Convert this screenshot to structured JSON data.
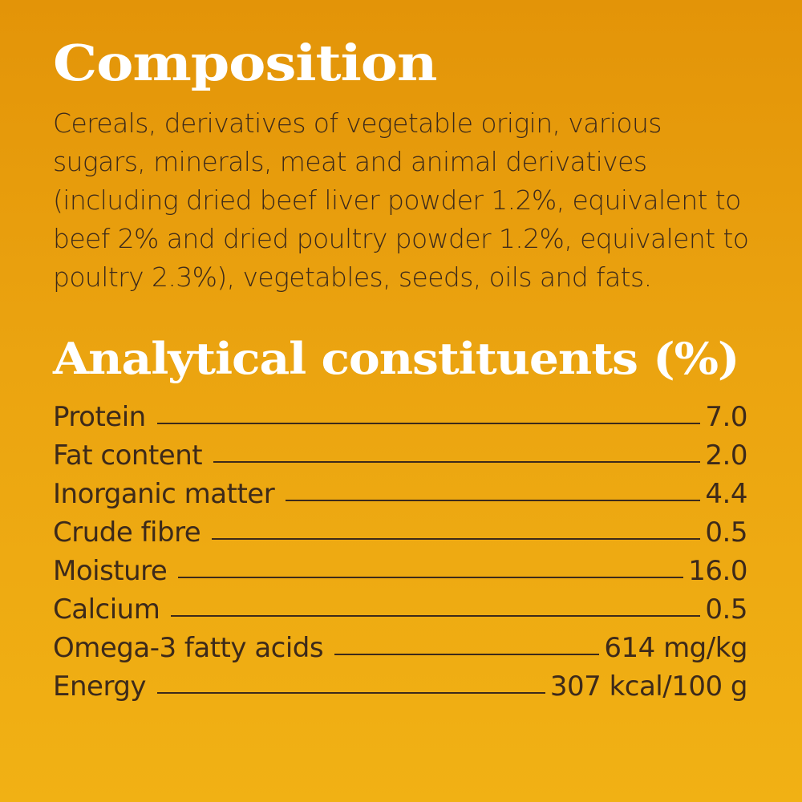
{
  "composition": {
    "title": "Composition",
    "text": "Cereals, derivatives of vegetable origin, various sugars, minerals, meat and animal derivatives (including dried beef liver powder 1.2%, equivalent to beef 2% and dried poultry powder 1.2%, equivalent to poultry 2.3%), vegetables, seeds, oils and fats."
  },
  "analytical": {
    "title": "Analytical constituents (%)",
    "rows": [
      {
        "label": "Protein",
        "value": "7.0"
      },
      {
        "label": "Fat content",
        "value": "2.0"
      },
      {
        "label": "Inorganic matter",
        "value": "4.4"
      },
      {
        "label": "Crude fibre",
        "value": "0.5"
      },
      {
        "label": "Moisture",
        "value": "16.0"
      },
      {
        "label": "Calcium",
        "value": "0.5"
      },
      {
        "label": "Omega-3 fatty acids",
        "value": "614 mg/kg"
      },
      {
        "label": "Energy",
        "value": "307 kcal/100 g"
      }
    ]
  },
  "colors": {
    "background_top": "#e39408",
    "background_bottom": "#f1b114",
    "heading": "#ffffff",
    "body_text": "#3d2a1a"
  }
}
